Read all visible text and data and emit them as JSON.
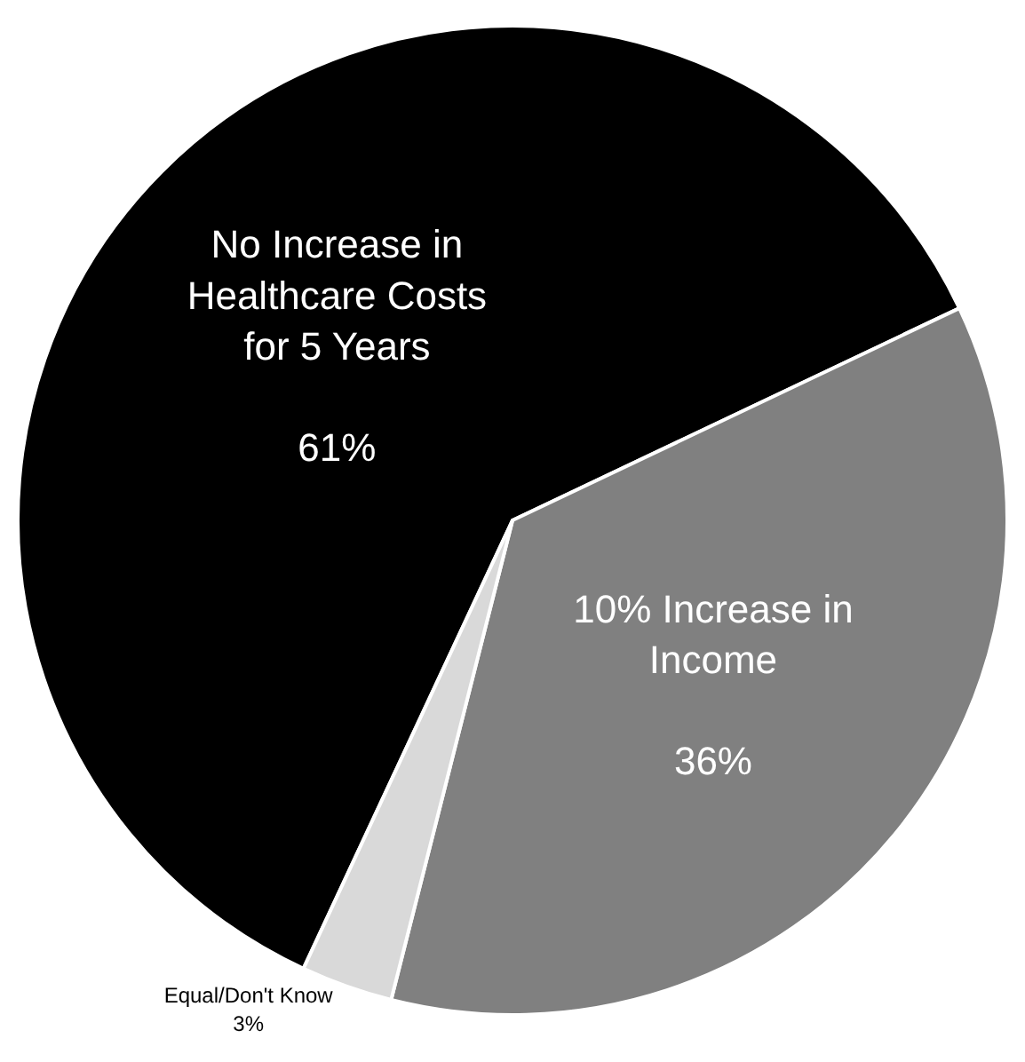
{
  "chart_data": {
    "type": "pie",
    "categories": [
      "No Increase in Healthcare Costs for 5 Years",
      "10% Increase in Income",
      "Equal/Don't Know"
    ],
    "values": [
      61,
      36,
      3
    ],
    "value_labels": [
      "61%",
      "36%",
      "3%"
    ],
    "colors": [
      "#000000",
      "#808080",
      "#d9d9d9"
    ],
    "legend": false
  }
}
